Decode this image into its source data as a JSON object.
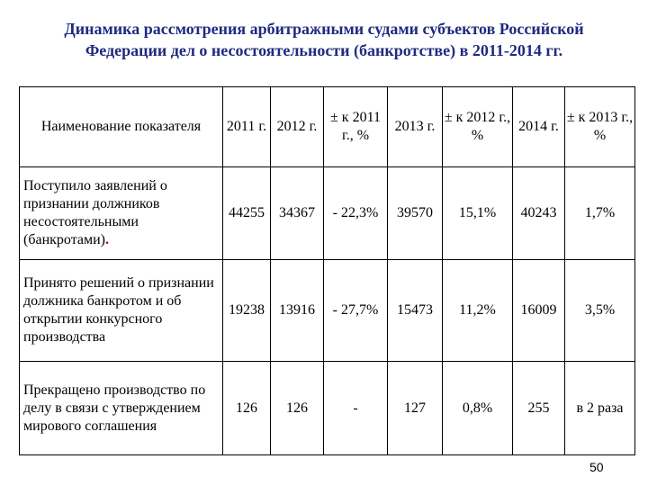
{
  "title": {
    "line1": "Динамика рассмотрения арбитражными судами субъектов Российской",
    "line2": "Федерации дел о несостоятельности (банкротстве) в 2011-2014 гг."
  },
  "table": {
    "headers": [
      "Наименование показателя",
      "2011 г.",
      "2012 г.",
      "± к 2011 г., %",
      "2013 г.",
      "± к 2012 г., %",
      "2014 г.",
      "± к 2013 г., %"
    ],
    "rows": [
      {
        "name": "Поступило заявлений о признании должников несостоятельными (банкротами)",
        "name_tail": ".",
        "values": [
          "44255",
          "34367",
          "- 22,3%",
          "39570",
          "15,1%",
          "40243",
          "1,7%"
        ]
      },
      {
        "name": "Принято решений о признании должника банкротом и об открытии конкурсного производства",
        "name_tail": "",
        "values": [
          "19238",
          "13916",
          "- 27,7%",
          "15473",
          "11,2%",
          "16009",
          "3,5%"
        ]
      },
      {
        "name": "Прекращено производство по делу в связи с утверждением мирового соглашения",
        "name_tail": "",
        "values": [
          "126",
          "126",
          "-",
          "127",
          "0,8%",
          "255",
          "в 2 раза"
        ]
      }
    ]
  },
  "page_number": "50"
}
